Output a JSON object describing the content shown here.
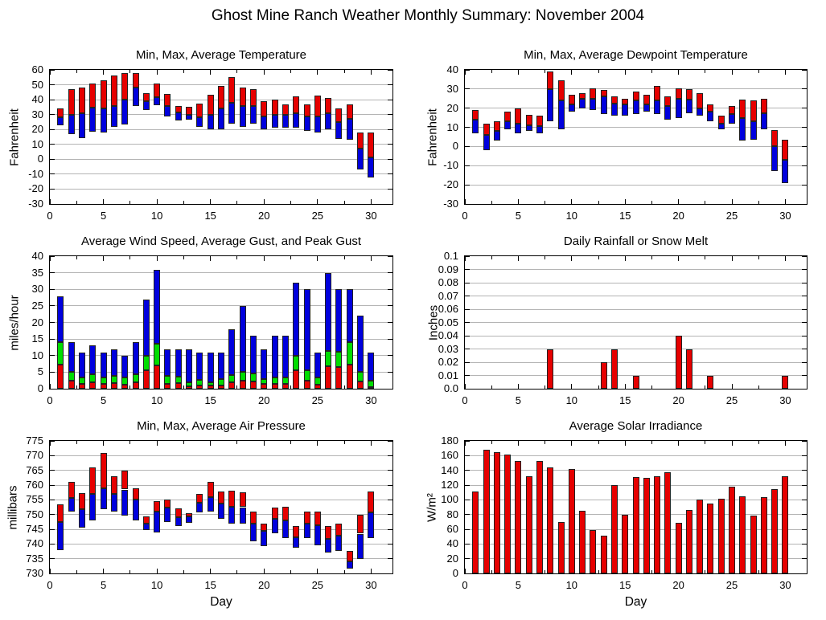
{
  "title": "Ghost Mine Ranch Weather Monthly Summary: November 2004",
  "xlabel": "Day",
  "days": [
    1,
    2,
    3,
    4,
    5,
    6,
    7,
    8,
    9,
    10,
    11,
    12,
    13,
    14,
    15,
    16,
    17,
    18,
    19,
    20,
    21,
    22,
    23,
    24,
    25,
    26,
    27,
    28,
    29,
    30
  ],
  "colors": {
    "red": "#e60000",
    "blue": "#0000dd",
    "green": "#00dd00",
    "grid": "#b4b4b4",
    "frame": "#000000",
    "bar_outline": "#222222"
  },
  "chart_data": [
    {
      "id": "temperature",
      "type": "range",
      "title": "Min, Max, Average Temperature",
      "ylabel": "Fahrenheit",
      "xlabel": "",
      "ylim": [
        -30,
        60
      ],
      "yticks": [
        -30,
        -20,
        -10,
        0,
        10,
        20,
        30,
        40,
        50,
        60
      ],
      "ytick_labels": [
        "-30",
        "-20",
        "-10",
        "0",
        "10",
        "20",
        "30",
        "40",
        "50",
        "60"
      ],
      "xlim": [
        0,
        32
      ],
      "xticks": [
        0,
        5,
        10,
        15,
        20,
        25,
        30
      ],
      "grid": true,
      "legend": "none",
      "series": [
        {
          "name": "Min",
          "color": "blue",
          "values": [
            23,
            17,
            14,
            18.5,
            18,
            21.5,
            23.5,
            35.5,
            33,
            36.5,
            28.5,
            26,
            26.5,
            22,
            20,
            20,
            24,
            22,
            24,
            20,
            21,
            21,
            21,
            19,
            18,
            20,
            13.5,
            13,
            -7,
            -12
          ]
        },
        {
          "name": "Average",
          "color": "split",
          "values": [
            28,
            30,
            31,
            34.5,
            34,
            35.5,
            40,
            48,
            39,
            41.5,
            35.5,
            31.5,
            30,
            28,
            30,
            34,
            38,
            36,
            36,
            29,
            30,
            30,
            31,
            29,
            29,
            31,
            25,
            27,
            7,
            1
          ]
        },
        {
          "name": "Max",
          "color": "red",
          "values": [
            34,
            47,
            48,
            51,
            53,
            56,
            58,
            58,
            44.5,
            51,
            44,
            35.5,
            35,
            37.5,
            43.5,
            49,
            55,
            48,
            47,
            39,
            40,
            37,
            42,
            37,
            42.5,
            41,
            34,
            37,
            18,
            18
          ]
        }
      ]
    },
    {
      "id": "dewpoint",
      "type": "range",
      "title": "Min, Max, Average Dewpoint Temperature",
      "ylabel": "Fahrenheit",
      "xlabel": "",
      "ylim": [
        -30,
        40
      ],
      "yticks": [
        -30,
        -20,
        -10,
        0,
        10,
        20,
        30,
        40
      ],
      "ytick_labels": [
        "-30",
        "-20",
        "-10",
        "0",
        "10",
        "20",
        "30",
        "40"
      ],
      "xlim": [
        0,
        32
      ],
      "xticks": [
        0,
        5,
        10,
        15,
        20,
        25,
        30
      ],
      "grid": true,
      "legend": "none",
      "series": [
        {
          "name": "Min",
          "color": "blue",
          "values": [
            7,
            -2,
            3,
            9,
            7,
            8,
            7,
            13,
            9,
            18,
            20,
            19,
            17,
            16,
            16,
            17,
            18,
            17,
            14,
            15,
            17.5,
            16,
            13,
            9,
            12,
            3,
            3.5,
            9,
            -13,
            -19
          ]
        },
        {
          "name": "Average",
          "color": "split",
          "values": [
            14,
            6,
            8,
            13,
            12,
            11,
            10.5,
            30,
            24,
            22,
            25,
            25,
            26,
            22.5,
            22,
            24,
            22,
            24,
            21,
            25,
            24.5,
            20,
            18,
            12,
            17,
            15,
            13,
            17.5,
            0,
            -7
          ]
        },
        {
          "name": "Max",
          "color": "red",
          "values": [
            19,
            12,
            13,
            18,
            20,
            16.5,
            16,
            39,
            34.5,
            27,
            28,
            30.5,
            29.5,
            26,
            25,
            28.5,
            27,
            31.5,
            26,
            30.5,
            30,
            28,
            22,
            16,
            21,
            24.5,
            24,
            25,
            8.5,
            3.5
          ]
        }
      ]
    },
    {
      "id": "wind",
      "type": "stacked",
      "title": "Average Wind Speed, Average Gust, and Peak Gust",
      "ylabel": "miles/hour",
      "xlabel": "",
      "ylim": [
        0,
        40
      ],
      "yticks": [
        0,
        5,
        10,
        15,
        20,
        25,
        30,
        35,
        40
      ],
      "ytick_labels": [
        "0",
        "5",
        "10",
        "15",
        "20",
        "25",
        "30",
        "35",
        "40"
      ],
      "xlim": [
        0,
        32
      ],
      "xticks": [
        0,
        5,
        10,
        15,
        20,
        25,
        30
      ],
      "grid": true,
      "legend": "none",
      "series": [
        {
          "name": "Average Wind Speed",
          "color": "red",
          "values": [
            7.3,
            2.5,
            1.5,
            2,
            1.4,
            1.6,
            1.1,
            1.9,
            5.5,
            7,
            1.5,
            1.6,
            0.8,
            1,
            1,
            1,
            2,
            2.4,
            2.2,
            1.4,
            1.5,
            1.5,
            5.5,
            2.5,
            1.2,
            6.7,
            6.5,
            7.3,
            2.3,
            0.6
          ]
        },
        {
          "name": "Average Gust",
          "color": "green",
          "values": [
            14,
            5,
            3.5,
            4.4,
            3.5,
            3.8,
            3.4,
            4.4,
            10,
            13.5,
            4,
            3.7,
            2,
            2.6,
            2,
            3,
            4.1,
            5.1,
            4.7,
            2.8,
            3.5,
            3.5,
            9.9,
            5.6,
            3.5,
            11.5,
            11.1,
            14,
            5.1,
            2.5
          ]
        },
        {
          "name": "Peak Gust",
          "color": "blue",
          "values": [
            28,
            14,
            11,
            13,
            11,
            12,
            10,
            14,
            27,
            36,
            12,
            12,
            12,
            11,
            11,
            11,
            18,
            25,
            16,
            12,
            16,
            16,
            32,
            30,
            11,
            35,
            30,
            30,
            22,
            11
          ]
        }
      ]
    },
    {
      "id": "rain",
      "type": "bar",
      "title": "Daily Rainfall or Snow Melt",
      "ylabel": "Inches",
      "xlabel": "",
      "ylim": [
        0,
        0.1
      ],
      "yticks": [
        0,
        0.01,
        0.02,
        0.03,
        0.04,
        0.05,
        0.06,
        0.07,
        0.08,
        0.09,
        0.1
      ],
      "ytick_labels": [
        "0.0",
        "0.01",
        "0.02",
        "0.03",
        "0.04",
        "0.05",
        "0.06",
        "0.07",
        "0.08",
        "0.09",
        "0.1"
      ],
      "xlim": [
        0,
        32
      ],
      "xticks": [
        0,
        5,
        10,
        15,
        20,
        25,
        30
      ],
      "grid": true,
      "legend": "none",
      "series": [
        {
          "name": "Rainfall",
          "color": "red",
          "values": [
            0,
            0,
            0,
            0,
            0,
            0,
            0,
            0.03,
            0,
            0,
            0,
            0,
            0.02,
            0.03,
            0,
            0.01,
            0,
            0,
            0,
            0.04,
            0.03,
            0,
            0.01,
            0,
            0,
            0,
            0,
            0,
            0,
            0.01
          ]
        }
      ]
    },
    {
      "id": "pressure",
      "type": "range",
      "title": "Min, Max, Average Air Pressure",
      "ylabel": "millibars",
      "xlabel": "Day",
      "ylim": [
        730,
        775
      ],
      "yticks": [
        730,
        735,
        740,
        745,
        750,
        755,
        760,
        765,
        770,
        775
      ],
      "ytick_labels": [
        "730",
        "735",
        "740",
        "745",
        "750",
        "755",
        "760",
        "765",
        "770",
        "775"
      ],
      "xlim": [
        0,
        32
      ],
      "xticks": [
        0,
        5,
        10,
        15,
        20,
        25,
        30
      ],
      "grid": true,
      "legend": "none",
      "series": [
        {
          "name": "Min",
          "color": "blue",
          "values": [
            738,
            751,
            745.5,
            748,
            751.7,
            751,
            749.6,
            748,
            744.6,
            744,
            747.5,
            746,
            747.3,
            750.7,
            751,
            748.6,
            747,
            747,
            741,
            739.4,
            743.5,
            742,
            738.7,
            742,
            739.5,
            737,
            737.7,
            731.6,
            735,
            742
          ]
        },
        {
          "name": "Average",
          "color": "split",
          "values": [
            747.5,
            755.7,
            751.7,
            757,
            759,
            757,
            758.5,
            755,
            747,
            751,
            752.3,
            749,
            749.4,
            754,
            756,
            753.6,
            752.7,
            752.5,
            747,
            744.4,
            748.6,
            748,
            742.3,
            747,
            746.5,
            741.6,
            742.7,
            734,
            743.5,
            750.7
          ]
        },
        {
          "name": "Max",
          "color": "red",
          "values": [
            753.5,
            761,
            757.3,
            766,
            771,
            763,
            765,
            759,
            749.4,
            754.5,
            755,
            752,
            750.5,
            757,
            761,
            757.7,
            758,
            757.5,
            751,
            746.8,
            752.3,
            752.7,
            746,
            751,
            751,
            746,
            746.8,
            737.7,
            750,
            757.7
          ]
        }
      ]
    },
    {
      "id": "solar",
      "type": "bar",
      "title": "Average Solar Irradiance",
      "ylabel": "W/m²",
      "xlabel": "Day",
      "ylim": [
        0,
        180
      ],
      "yticks": [
        0,
        20,
        40,
        60,
        80,
        100,
        120,
        140,
        160,
        180
      ],
      "ytick_labels": [
        "0",
        "20",
        "40",
        "60",
        "80",
        "100",
        "120",
        "140",
        "160",
        "180"
      ],
      "xlim": [
        0,
        32
      ],
      "xticks": [
        0,
        5,
        10,
        15,
        20,
        25,
        30
      ],
      "grid": true,
      "legend": "none",
      "series": [
        {
          "name": "Average Solar Irradiance",
          "color": "red",
          "values": [
            111,
            168,
            165,
            162,
            153,
            132,
            153,
            144,
            70,
            142,
            85,
            59,
            51,
            120,
            80,
            131,
            130,
            132,
            138,
            69,
            86,
            100,
            95,
            102,
            118,
            105,
            79,
            104,
            115,
            132
          ]
        }
      ]
    }
  ]
}
